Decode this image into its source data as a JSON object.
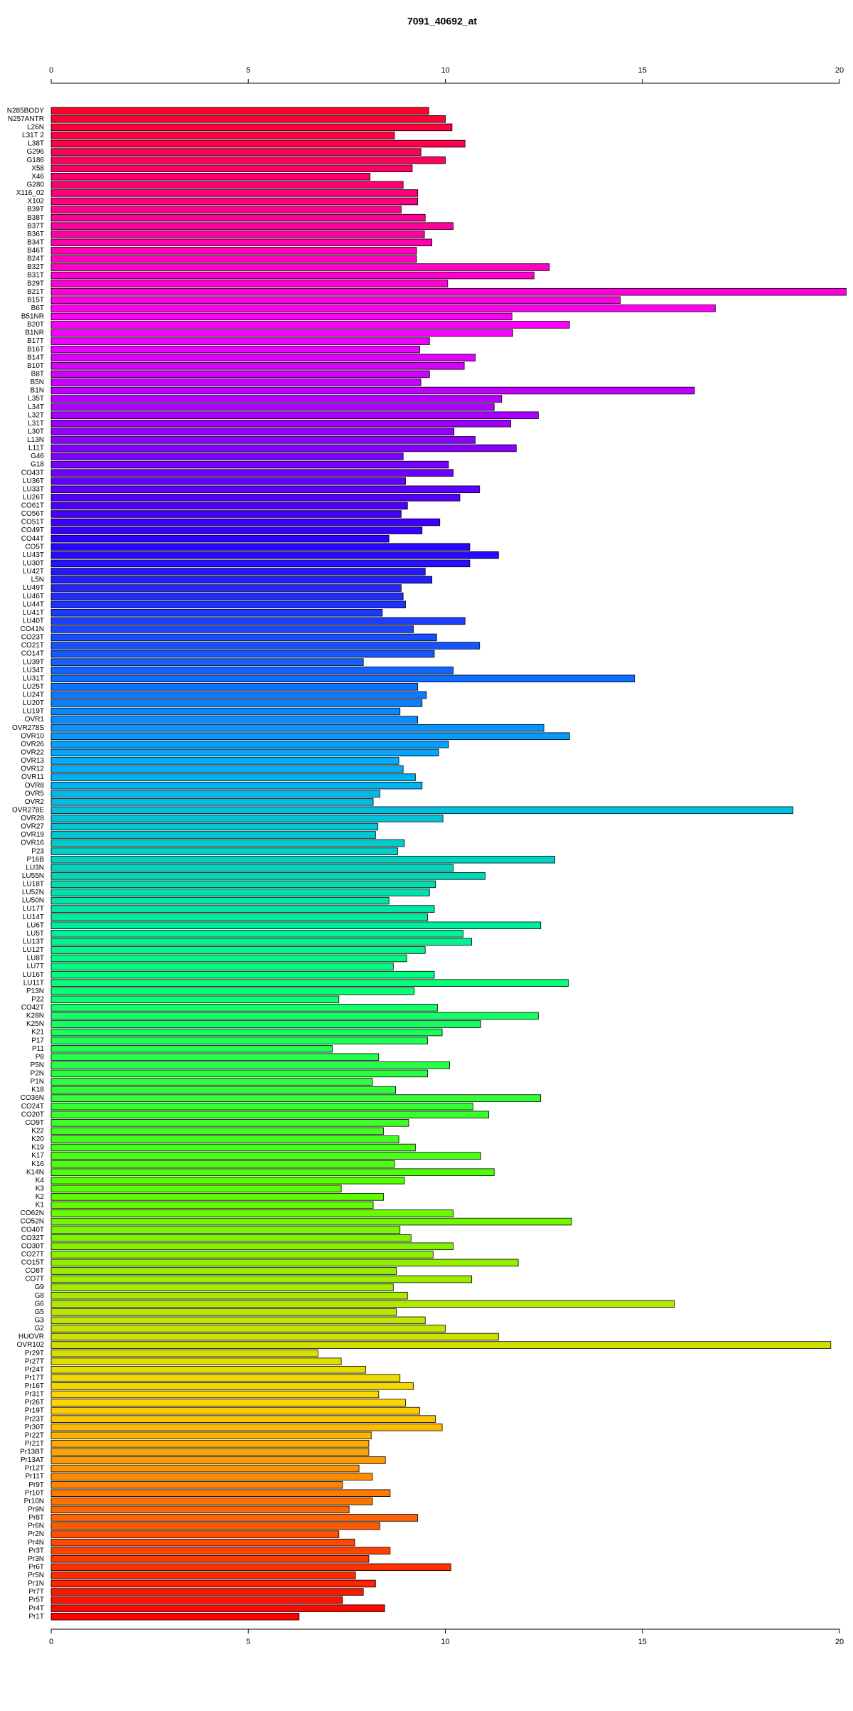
{
  "chart_data": {
    "type": "barh",
    "title": "7091_40692_at",
    "categories": [
      "N285BODY",
      "N257ANTR",
      "L26N",
      "L31T 2",
      "L38T",
      "G296",
      "G186",
      "X58",
      "X46",
      "G280",
      "X116_02",
      "X102",
      "B39T",
      "B38T",
      "B37T",
      "B36T",
      "B34T",
      "B46T",
      "B24T",
      "B32T",
      "B31T",
      "B29T",
      "B21T",
      "B15T",
      "B6T",
      "B51NR",
      "B20T",
      "B1NR",
      "B17T",
      "B16T",
      "B14T",
      "B10T",
      "B8T",
      "B5N",
      "B1N",
      "L35T",
      "L34T",
      "L32T",
      "L31T",
      "L30T",
      "L13N",
      "L11T",
      "G46",
      "G18",
      "CO43T",
      "LU36T",
      "LU33T",
      "LU26T",
      "CO61T",
      "CO56T",
      "CO51T",
      "CO49T",
      "CO44T",
      "CO5T",
      "LU43T",
      "LU30T",
      "LU42T",
      "L5N",
      "LU49T",
      "LU46T",
      "LU44T",
      "LU41T",
      "LU40T",
      "CO41N",
      "CO23T",
      "CO21T",
      "CO14T",
      "LU39T",
      "LU34T",
      "LU31T",
      "LU25T",
      "LU24T",
      "LU20T",
      "LU19T",
      "OVR1",
      "OVR278S",
      "OVR10",
      "OVR26",
      "OVR22",
      "OVR13",
      "OVR12",
      "OVR11",
      "OVR8",
      "OVR5",
      "OVR2",
      "OVR278E",
      "OVR28",
      "OVR27",
      "OVR19",
      "OVR16",
      "P23",
      "P16B",
      "LU3N",
      "LU55N",
      "LU18T",
      "LU52N",
      "LU50N",
      "LU17T",
      "LU14T",
      "LU6T",
      "LU5T",
      "LU13T",
      "LU12T",
      "LU8T",
      "LU7T",
      "LU16T",
      "LU11T",
      "P13N",
      "P22",
      "CO42T",
      "K28N",
      "K25N",
      "K21",
      "P17",
      "P11",
      "P8",
      "P5N",
      "P2N",
      "P1N",
      "K18",
      "CO36N",
      "CO24T",
      "CO20T",
      "CO9T",
      "K22",
      "K20",
      "K19",
      "K17",
      "K16",
      "K14N",
      "K4",
      "K3",
      "K2",
      "K1",
      "CO62N",
      "CO52N",
      "CO40T",
      "CO32T",
      "CO30T",
      "CO27T",
      "CO15T",
      "CO8T",
      "CO7T",
      "G9",
      "G8",
      "G6",
      "G5",
      "G3",
      "G2",
      "HUOVR",
      "OVR102",
      "Pr29T",
      "Pr27T",
      "Pr24T",
      "Pr17T",
      "Pr16T",
      "Pr31T",
      "Pr26T",
      "Pr19T",
      "Pr23T",
      "Pr30T",
      "Pr22T",
      "Pr21T",
      "Pr13BT",
      "Pr13AT",
      "Pr12T",
      "Pr11T",
      "Pr9T",
      "Pr10T",
      "Pr10N",
      "Pr9N",
      "Pr8T",
      "Pr6N",
      "Pr2N",
      "Pr4N",
      "Pr3T",
      "Pr3N",
      "Pr6T",
      "Pr5N",
      "Pr1N",
      "Pr7T",
      "Pr5T",
      "Pr4T",
      "Pr1T"
    ],
    "values": [
      9.58,
      10.0,
      10.17,
      8.71,
      10.5,
      9.38,
      10.0,
      9.16,
      8.09,
      8.93,
      9.3,
      9.3,
      8.88,
      9.49,
      10.2,
      9.47,
      9.66,
      9.27,
      9.27,
      12.64,
      12.25,
      10.06,
      20.17,
      14.44,
      16.85,
      11.69,
      13.15,
      11.71,
      9.6,
      9.35,
      10.76,
      10.48,
      9.6,
      9.38,
      16.32,
      11.43,
      11.24,
      12.36,
      11.66,
      10.22,
      10.76,
      11.8,
      8.93,
      10.08,
      10.2,
      8.99,
      10.87,
      10.37,
      9.04,
      8.88,
      9.86,
      9.41,
      8.57,
      10.62,
      11.35,
      10.62,
      9.49,
      9.66,
      8.88,
      8.93,
      8.99,
      8.4,
      10.5,
      9.19,
      9.78,
      10.87,
      9.72,
      7.92,
      10.2,
      14.8,
      9.3,
      9.52,
      9.41,
      8.85,
      9.3,
      12.5,
      13.15,
      10.08,
      9.83,
      8.82,
      8.93,
      9.24,
      9.41,
      8.34,
      8.17,
      18.82,
      9.94,
      8.29,
      8.23,
      8.96,
      8.79,
      12.78,
      10.2,
      11.01,
      9.75,
      9.6,
      8.57,
      9.72,
      9.55,
      12.42,
      10.45,
      10.67,
      9.49,
      9.02,
      8.68,
      9.72,
      13.12,
      9.21,
      7.3,
      9.8,
      12.36,
      10.9,
      9.92,
      9.55,
      7.13,
      8.31,
      10.11,
      9.55,
      8.15,
      8.74,
      12.42,
      10.7,
      11.1,
      9.07,
      8.43,
      8.82,
      9.24,
      10.9,
      8.71,
      11.24,
      8.96,
      7.36,
      8.43,
      8.17,
      10.2,
      13.2,
      8.85,
      9.13,
      10.2,
      9.69,
      11.85,
      8.76,
      10.67,
      8.68,
      9.04,
      15.81,
      8.76,
      9.49,
      10.0,
      11.35,
      19.78,
      6.77,
      7.36,
      7.98,
      8.85,
      9.19,
      8.31,
      8.99,
      9.35,
      9.75,
      9.92,
      8.12,
      8.06,
      8.06,
      8.48,
      7.81,
      8.15,
      7.39,
      8.6,
      8.15,
      7.56,
      9.3,
      8.34,
      7.3,
      7.7,
      8.6,
      8.06,
      10.14,
      7.72,
      8.23,
      7.92,
      7.39,
      8.46,
      6.29
    ],
    "colors": [
      "#ff002b",
      "#ff00ff",
      "#2a00ff",
      "#00aaff",
      "#00ff80",
      "#55ff00",
      "#ffd500",
      "#ff0000"
    ],
    "xlim": [
      0,
      20
    ],
    "xticks": [
      0,
      5,
      10,
      15,
      20
    ]
  }
}
